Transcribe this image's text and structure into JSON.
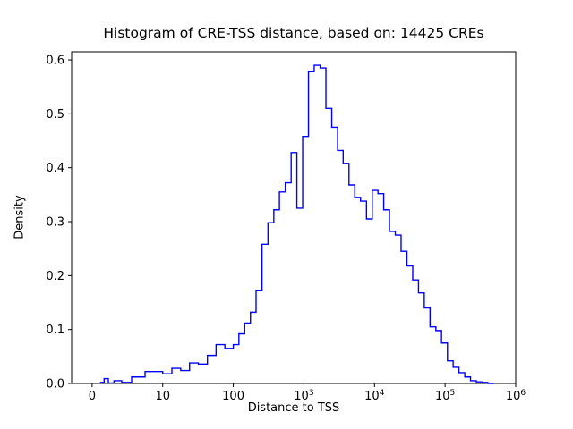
{
  "chart_data": {
    "type": "step-histogram",
    "title": "Histogram of CRE-TSS distance, based on: 14425 CREs",
    "xlabel": "Distance to TSS",
    "ylabel": "Density",
    "sample_size": 14425,
    "x_scale": "symlog",
    "line_color": "#0000ff",
    "axis_color": "#000000",
    "background": "#ffffff",
    "ylim": [
      0,
      0.615
    ],
    "grid": false,
    "legend": "none",
    "xticks": [
      {
        "value": 0,
        "label": "0"
      },
      {
        "value": 10,
        "label": "10"
      },
      {
        "value": 100,
        "label": "100"
      },
      {
        "value": 1000,
        "label": "10^3"
      },
      {
        "value": 10000,
        "label": "10^4"
      },
      {
        "value": 100000,
        "label": "10^5"
      },
      {
        "value": 1000000,
        "label": "10^6"
      }
    ],
    "yticks": [
      0.0,
      0.1,
      0.2,
      0.3,
      0.4,
      0.5,
      0.6
    ],
    "bin_edges": [
      1.2,
      1.7,
      2.3,
      3.1,
      4.2,
      5.6,
      7.5,
      10,
      13.5,
      18,
      24,
      32,
      43,
      57,
      76,
      100,
      120,
      145,
      175,
      210,
      255,
      310,
      375,
      450,
      545,
      660,
      795,
      960,
      1160,
      1400,
      1700,
      2050,
      2480,
      3000,
      3600,
      4350,
      5250,
      6350,
      7700,
      9300,
      11200,
      13500,
      16300,
      19700,
      23800,
      28800,
      34800,
      42000,
      50700,
      61200,
      74000,
      89000,
      108000,
      130000,
      157000,
      190000,
      229000,
      277000,
      335000,
      404000,
      488000
    ],
    "densities": [
      0.002,
      0.009,
      0.001,
      0.005,
      0.002,
      0.012,
      0.022,
      0.018,
      0.028,
      0.024,
      0.038,
      0.036,
      0.052,
      0.072,
      0.065,
      0.072,
      0.092,
      0.112,
      0.132,
      0.172,
      0.258,
      0.298,
      0.322,
      0.355,
      0.372,
      0.428,
      0.325,
      0.458,
      0.578,
      0.59,
      0.585,
      0.51,
      0.475,
      0.432,
      0.408,
      0.368,
      0.345,
      0.338,
      0.305,
      0.358,
      0.352,
      0.322,
      0.282,
      0.275,
      0.245,
      0.218,
      0.192,
      0.168,
      0.14,
      0.105,
      0.098,
      0.075,
      0.042,
      0.03,
      0.02,
      0.012,
      0.005,
      0.003,
      0.002,
      0.0
    ]
  }
}
